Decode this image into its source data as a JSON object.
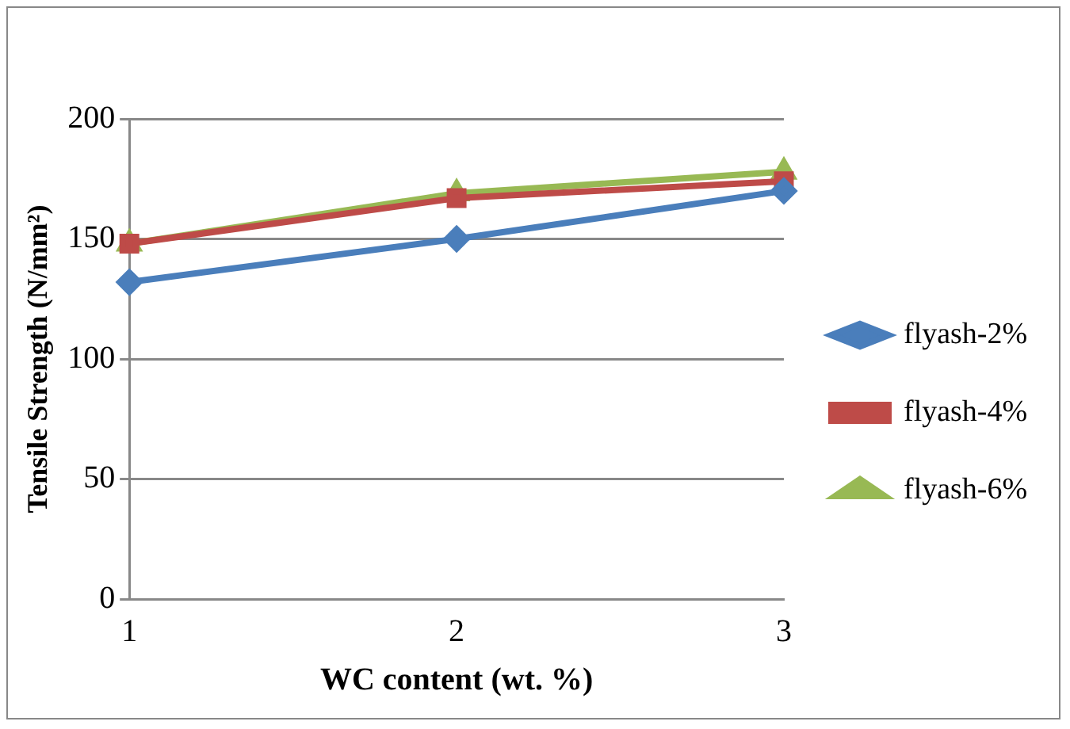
{
  "chart_data": {
    "type": "line",
    "xlabel": "WC content (wt. %)",
    "ylabel": "Tensile Strength (N/mm²)",
    "categories": [
      "1",
      "2",
      "3"
    ],
    "series": [
      {
        "name": "flyash-2%",
        "color": "#4a7ebb",
        "values": [
          132,
          150,
          170
        ],
        "marker": "diamond"
      },
      {
        "name": "flyash-4%",
        "color": "#be4b48",
        "values": [
          148,
          167,
          174
        ],
        "marker": "square"
      },
      {
        "name": "flyash-6%",
        "color": "#98b954",
        "values": [
          148,
          169,
          178
        ],
        "marker": "triangle"
      }
    ],
    "ylim": [
      0,
      200
    ],
    "yticks": [
      0,
      50,
      100,
      150,
      200
    ],
    "grid": "y",
    "legend": "right",
    "line_style": "solid"
  }
}
